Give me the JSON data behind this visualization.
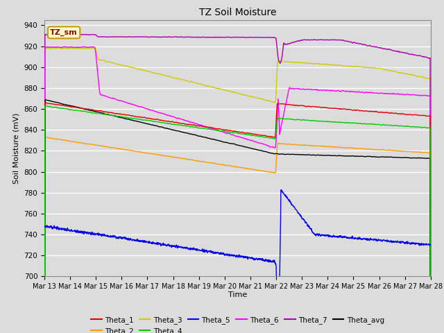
{
  "title": "TZ Soil Moisture",
  "ylabel": "Soil Moisture (mV)",
  "xlabel": "Time",
  "ylim": [
    700,
    945
  ],
  "yticks": [
    700,
    720,
    740,
    760,
    780,
    800,
    820,
    840,
    860,
    880,
    900,
    920,
    940
  ],
  "bg_color": "#dcdcdc",
  "label_box": "TZ_sm",
  "colors": {
    "Theta_1": "#dd0000",
    "Theta_2": "#ff9900",
    "Theta_3": "#cccc00",
    "Theta_4": "#00cc00",
    "Theta_5": "#0000ee",
    "Theta_6": "#ff00ff",
    "Theta_7": "#aa00aa",
    "Theta_avg": "#000000"
  },
  "n_days": 15,
  "pts_per_day": 96,
  "start_day": 13,
  "rain_day": 9.0
}
